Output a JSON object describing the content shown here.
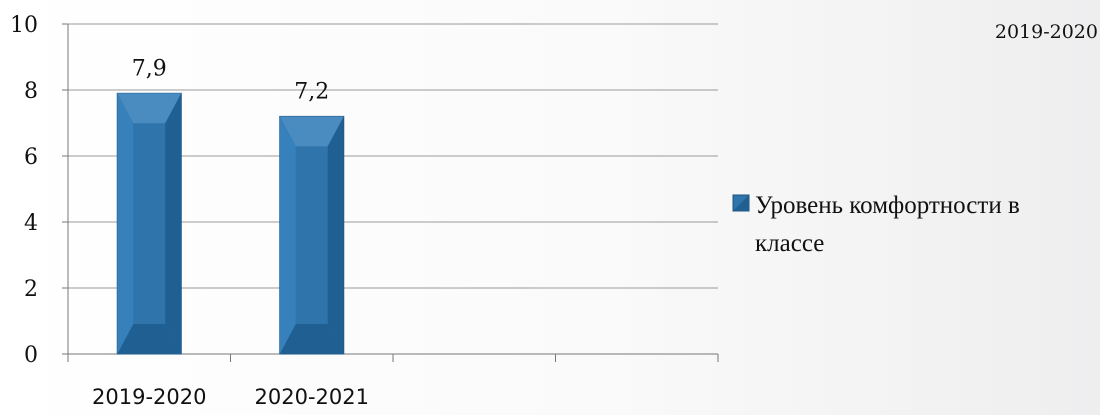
{
  "corner_label": "2019-2020",
  "chart_data": {
    "type": "bar",
    "categories": [
      "2019-2020",
      "2020-2021",
      "",
      ""
    ],
    "series": [
      {
        "name": "Уровень комфортности в классе",
        "values": [
          7.9,
          7.2,
          null,
          null
        ]
      }
    ],
    "data_labels": [
      "7,9",
      "7,2"
    ],
    "yticks": [
      0,
      2,
      4,
      6,
      8,
      10
    ],
    "ylim": [
      0,
      10
    ],
    "grid": true,
    "legend_position": "right",
    "legend_lines": [
      "Уровень комфортности в",
      "классе"
    ],
    "colors": {
      "bar": "#2f74ab",
      "bar_dark": "#1f5f91",
      "bar_light": "#4a8bc0",
      "grid": "#9a9a9a"
    }
  }
}
